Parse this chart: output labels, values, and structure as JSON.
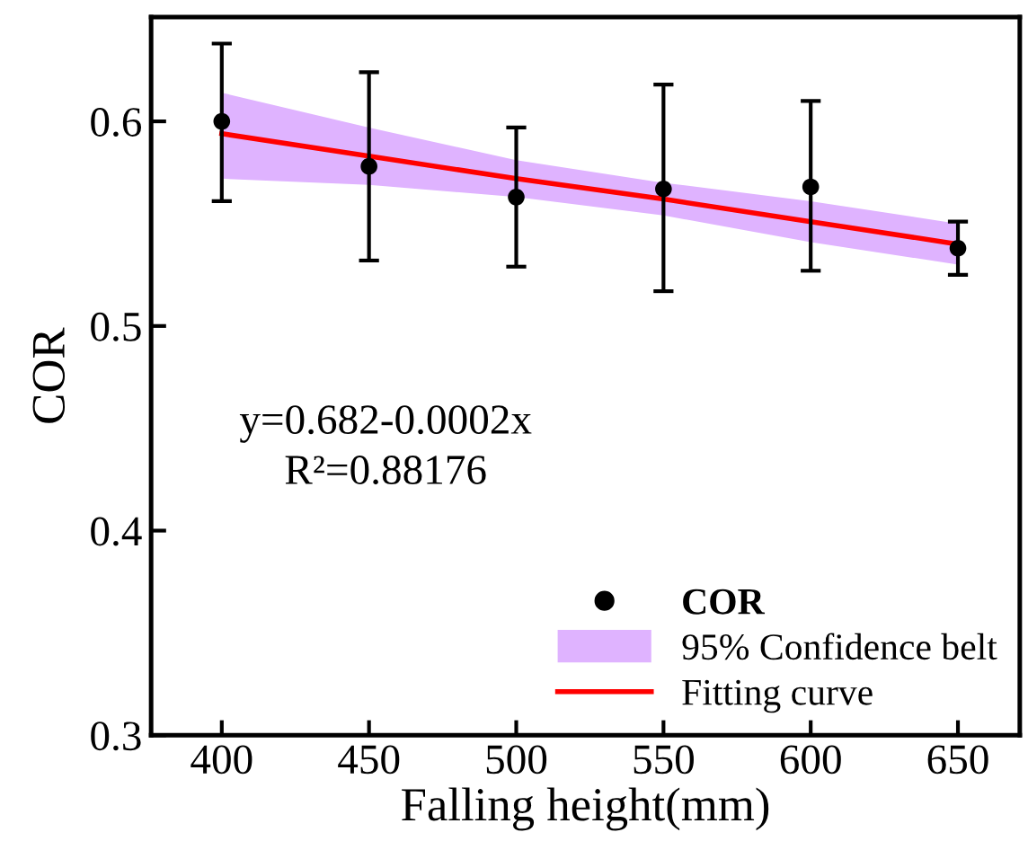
{
  "chart_data": {
    "type": "scatter",
    "xlabel": "Falling height(mm)",
    "ylabel": "COR",
    "x": [
      400,
      450,
      500,
      550,
      600,
      650
    ],
    "series": [
      {
        "name": "COR",
        "color": "#000000",
        "marker": "circle",
        "values": [
          0.6,
          0.578,
          0.563,
          0.567,
          0.568,
          0.538
        ],
        "errors": [
          [
            0.561,
            0.638
          ],
          [
            0.532,
            0.624
          ],
          [
            0.529,
            0.597
          ],
          [
            0.517,
            0.618
          ],
          [
            0.527,
            0.61
          ],
          [
            0.525,
            0.551
          ]
        ]
      },
      {
        "name": "Fitting curve",
        "type": "line",
        "color": "#ff0000",
        "x": [
          400,
          450,
          500,
          550,
          600,
          650
        ],
        "values": [
          0.594,
          0.583,
          0.572,
          0.562,
          0.551,
          0.54
        ],
        "lower": [
          0.572,
          0.569,
          0.563,
          0.554,
          0.541,
          0.53
        ],
        "upper": [
          0.614,
          0.597,
          0.581,
          0.57,
          0.561,
          0.55
        ]
      }
    ],
    "annotations": [
      "y=0.682-0.0002x",
      "R²=0.88176",
      "95% Confidence belt"
    ],
    "xlim": [
      376,
      671
    ],
    "xticks": [
      400,
      450,
      500,
      550,
      600,
      650
    ],
    "ylim": [
      0.3,
      0.651
    ],
    "yticks": [
      0.3,
      0.4,
      0.5,
      0.6
    ],
    "legend": "bottom right",
    "grid": false
  }
}
